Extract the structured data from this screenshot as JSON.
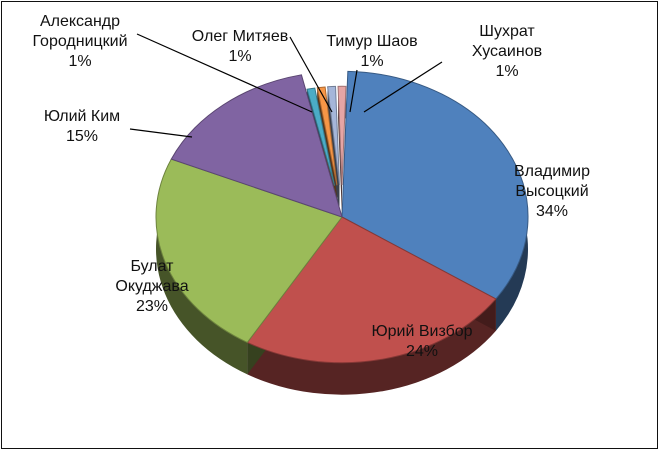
{
  "chart_data": {
    "type": "pie",
    "title": "",
    "style": "exploded 3D pie",
    "legend": "none",
    "series": [
      {
        "name": "Владимир Высоцкий",
        "value": 34,
        "label": "34%",
        "color": "#4F81BD"
      },
      {
        "name": "Юрий Визбор",
        "value": 24,
        "label": "24%",
        "color": "#C0504D"
      },
      {
        "name": "Булат Окуджава",
        "value": 23,
        "label": "23%",
        "color": "#9BBB59"
      },
      {
        "name": "Юлий Ким",
        "value": 15,
        "label": "15%",
        "color": "#8064A2"
      },
      {
        "name": "Александр Городницкий",
        "value": 1,
        "label": "1%",
        "color": "#4BACC6"
      },
      {
        "name": "Олег Митяев",
        "value": 1,
        "label": "1%",
        "color": "#F79646"
      },
      {
        "name": "Тимур Шаов",
        "value": 1,
        "label": "1%",
        "color": "#A5B6D9"
      },
      {
        "name": "Шухрат Хусаинов",
        "value": 1,
        "label": "1%",
        "color": "#E6A5A5"
      }
    ],
    "labels": [
      {
        "lines": [
          "Владимир",
          "Высоцкий"
        ],
        "pct": "34%"
      },
      {
        "lines": [
          "Юрий Визбор"
        ],
        "pct": "24%"
      },
      {
        "lines": [
          "Булат",
          "Окуджава"
        ],
        "pct": "23%"
      },
      {
        "lines": [
          "Юлий Ким"
        ],
        "pct": "15%"
      },
      {
        "lines": [
          "Александр",
          "Городницкий"
        ],
        "pct": "1%"
      },
      {
        "lines": [
          "Олег Митяев"
        ],
        "pct": "1%"
      },
      {
        "lines": [
          "Тимур Шаов"
        ],
        "pct": "1%"
      },
      {
        "lines": [
          "Шухрат",
          "Хусаинов"
        ],
        "pct": "1%"
      }
    ]
  }
}
